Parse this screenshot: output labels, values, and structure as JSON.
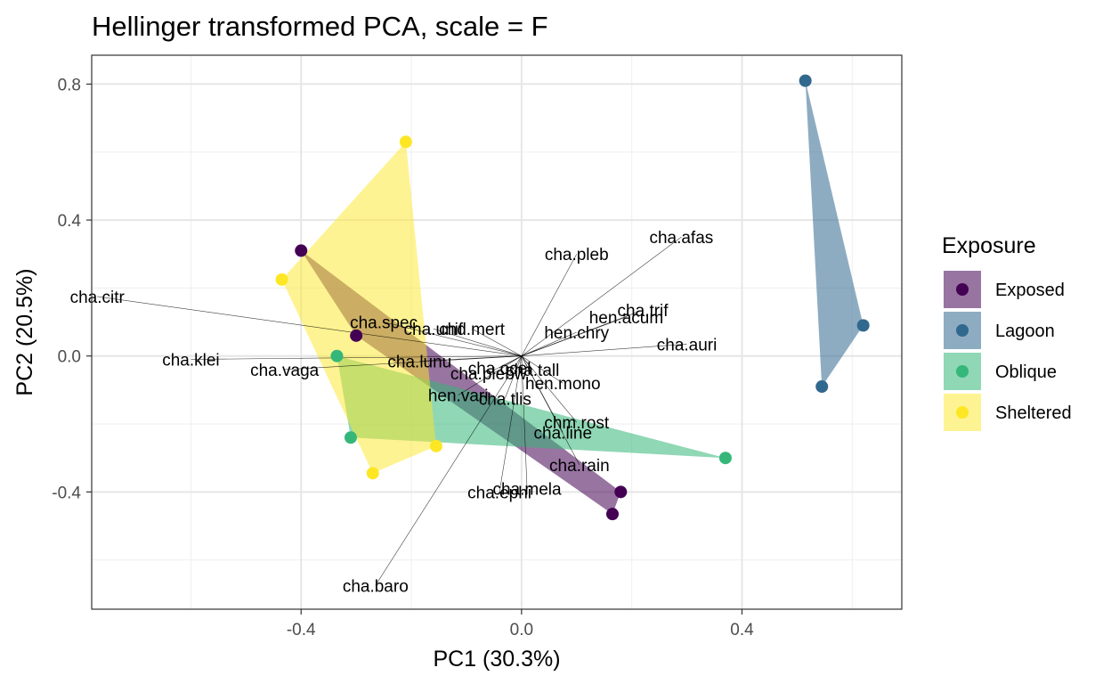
{
  "chart_data": {
    "type": "scatter",
    "title": "Hellinger transformed PCA, scale = F",
    "xlabel": "PC1 (30.3%)",
    "ylabel": "PC2 (20.5%)",
    "xlim": [
      -0.78,
      0.69
    ],
    "ylim": [
      -0.745,
      0.885
    ],
    "x_ticks": [
      -0.4,
      0.0,
      0.4
    ],
    "x_tick_labels": [
      "-0.4",
      "0.0",
      "0.4"
    ],
    "y_ticks": [
      -0.4,
      0.0,
      0.4,
      0.8
    ],
    "y_tick_labels": [
      "-0.4",
      "0.0",
      "0.4",
      "0.8"
    ],
    "grid": true,
    "legend": {
      "title": "Exposure",
      "placement": "right",
      "entries": [
        "Exposed",
        "Lagoon",
        "Oblique",
        "Sheltered"
      ]
    },
    "series": [
      {
        "name": "Exposed",
        "color": "#440154",
        "hull_alpha": 0.55,
        "points": [
          [
            -0.4,
            0.31
          ],
          [
            -0.3,
            0.06
          ],
          [
            0.18,
            -0.4
          ],
          [
            0.165,
            -0.465
          ]
        ]
      },
      {
        "name": "Lagoon",
        "color": "#31688E",
        "hull_alpha": 0.55,
        "points": [
          [
            0.515,
            0.81
          ],
          [
            0.62,
            0.09
          ],
          [
            0.545,
            -0.09
          ]
        ]
      },
      {
        "name": "Oblique",
        "color": "#35B779",
        "hull_alpha": 0.55,
        "points": [
          [
            -0.335,
            0.0
          ],
          [
            -0.31,
            -0.24
          ],
          [
            0.37,
            -0.3
          ]
        ]
      },
      {
        "name": "Sheltered",
        "color": "#FDE725",
        "hull_alpha": 0.5,
        "points": [
          [
            -0.21,
            0.63
          ],
          [
            -0.435,
            0.225
          ],
          [
            -0.27,
            -0.345
          ],
          [
            -0.155,
            -0.265
          ]
        ]
      }
    ],
    "vectors": [
      {
        "label": "cha.citr",
        "x": -0.77,
        "y": 0.175
      },
      {
        "label": "cha.pleb",
        "x": 0.1,
        "y": 0.3
      },
      {
        "label": "cha.afas",
        "x": 0.29,
        "y": 0.35
      },
      {
        "label": "cha.trif",
        "x": 0.22,
        "y": 0.135
      },
      {
        "label": "hen.acum",
        "x": 0.19,
        "y": 0.115
      },
      {
        "label": "hen.chry",
        "x": 0.1,
        "y": 0.07
      },
      {
        "label": "cha.spec",
        "x": -0.25,
        "y": 0.1
      },
      {
        "label": "cha.unif",
        "x": -0.16,
        "y": 0.08
      },
      {
        "label": "chd.mert",
        "x": -0.09,
        "y": 0.08
      },
      {
        "label": "cha.auri",
        "x": 0.3,
        "y": 0.035
      },
      {
        "label": "cha.klei",
        "x": -0.6,
        "y": -0.01
      },
      {
        "label": "cha.vaga",
        "x": -0.43,
        "y": -0.04
      },
      {
        "label": "cha.lunu",
        "x": -0.185,
        "y": -0.015
      },
      {
        "label": "cha.ocel",
        "x": -0.04,
        "y": -0.035
      },
      {
        "label": "cha.plebw",
        "x": -0.06,
        "y": -0.05
      },
      {
        "label": "cha.tall",
        "x": 0.02,
        "y": -0.04
      },
      {
        "label": "hen.mono",
        "x": 0.075,
        "y": -0.08
      },
      {
        "label": "hen.vari",
        "x": -0.115,
        "y": -0.115
      },
      {
        "label": "cha.tlis",
        "x": -0.03,
        "y": -0.125
      },
      {
        "label": "chm.rost",
        "x": 0.1,
        "y": -0.195
      },
      {
        "label": "cha.line",
        "x": 0.075,
        "y": -0.225
      },
      {
        "label": "cha.rain",
        "x": 0.105,
        "y": -0.32
      },
      {
        "label": "cha.mela",
        "x": 0.01,
        "y": -0.39
      },
      {
        "label": "cha.ephi",
        "x": -0.04,
        "y": -0.4
      },
      {
        "label": "cha.baro",
        "x": -0.265,
        "y": -0.675
      }
    ]
  }
}
